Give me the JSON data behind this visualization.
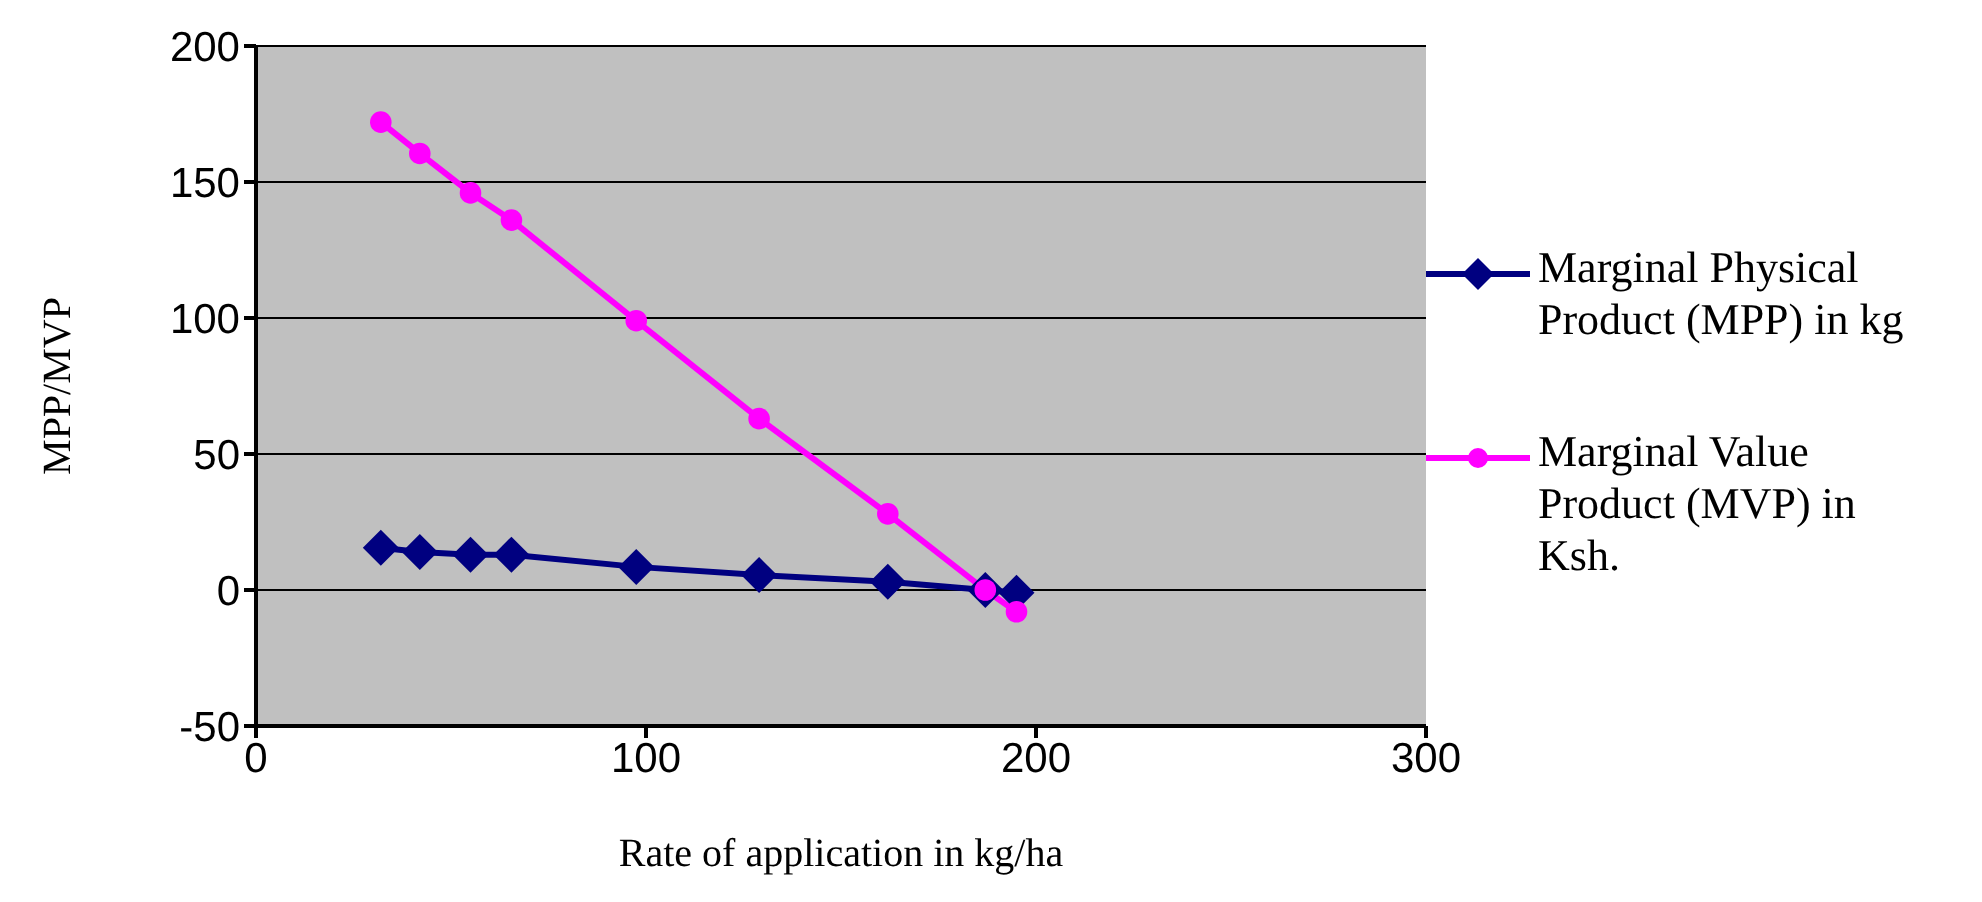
{
  "chart_data": {
    "type": "line",
    "xlabel": "Rate of application in kg/ha",
    "ylabel": "MPP/MVP",
    "x": [
      32,
      42,
      55,
      65.5,
      97.5,
      129,
      162,
      187,
      195
    ],
    "series": [
      {
        "name": "Marginal Physical Product (MPP) in kg",
        "color": "#000080",
        "marker": "diamond",
        "values": [
          15.5,
          14,
          13,
          13,
          8.5,
          5.5,
          3,
          0,
          -1
        ]
      },
      {
        "name": "Marginal Value Product (MVP) in Ksh.",
        "color": "#ff00ff",
        "marker": "circle",
        "values": [
          172,
          160.5,
          146,
          136,
          99,
          63,
          28,
          0,
          -8
        ]
      }
    ],
    "xlim": [
      0,
      300
    ],
    "xticks": [
      0,
      100,
      200,
      300
    ],
    "ylim": [
      -50,
      200
    ],
    "yticks": [
      -50,
      0,
      50,
      100,
      150,
      200
    ],
    "grid": "y",
    "legend": "right"
  }
}
